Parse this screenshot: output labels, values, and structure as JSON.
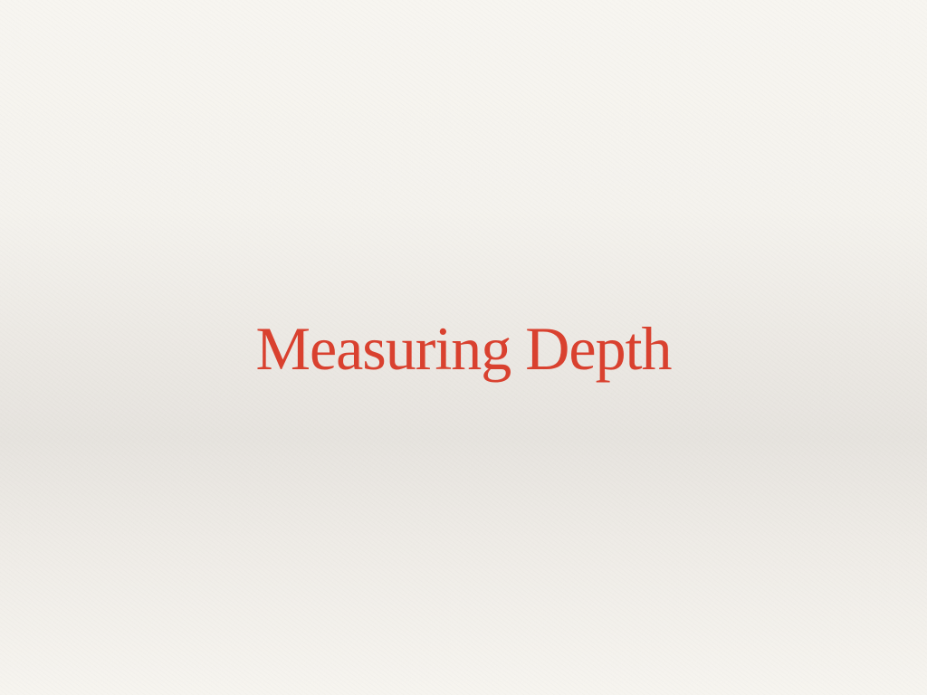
{
  "slide": {
    "title": "Measuring Depth"
  },
  "colors": {
    "title_text": "#d9412f",
    "background": "#f4f2ed"
  }
}
